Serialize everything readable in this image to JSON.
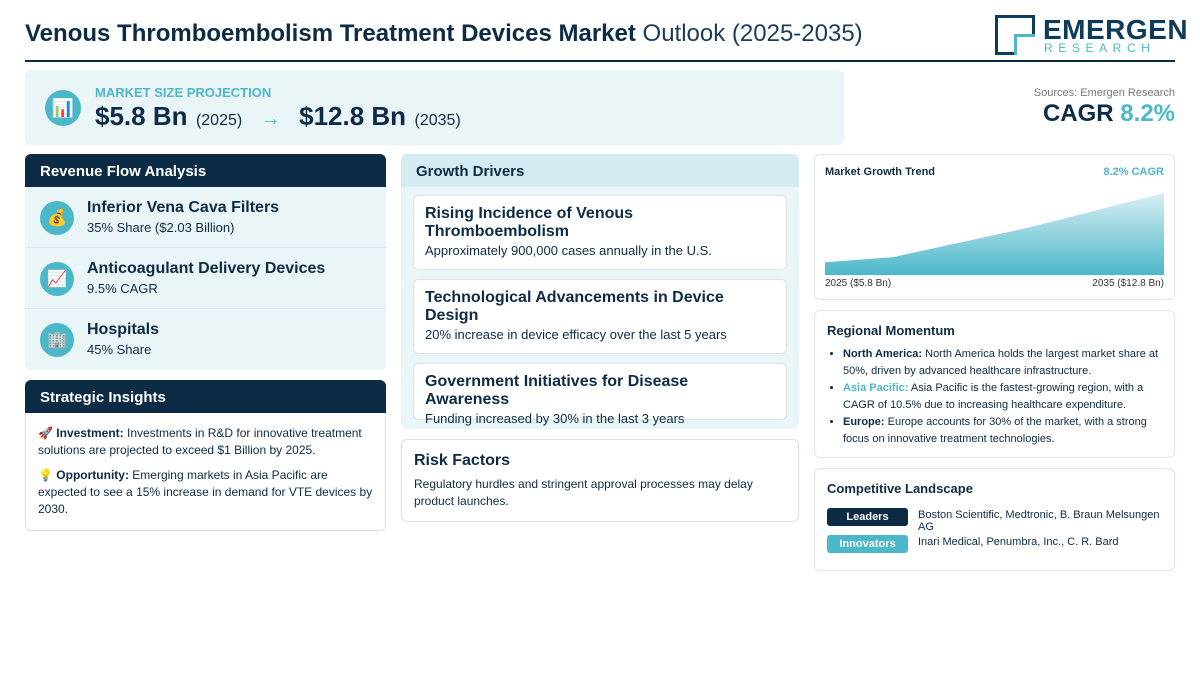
{
  "header": {
    "title_strong": "Venous Thromboembolism Treatment Devices Market",
    "title_light": "Outlook (2025-2035)",
    "logo_name": "EMERGEN",
    "logo_sub": "RESEARCH"
  },
  "projection": {
    "label": "MARKET SIZE PROJECTION",
    "icon": "bar-chart-icon",
    "start_value": "$5.8 Bn",
    "start_year": "(2025)",
    "arrow": "→",
    "end_value": "$12.8 Bn",
    "end_year": "(2035)"
  },
  "cagr": {
    "sources": "Sources: Emergen Research",
    "label": "CAGR",
    "value": "8.2%"
  },
  "revenue_flow": {
    "title": "Revenue Flow Analysis",
    "items": [
      {
        "icon": "money-bag-icon",
        "title": "Inferior Vena Cava Filters",
        "sub": "35% Share ($2.03 Billion)"
      },
      {
        "icon": "trend-up-icon",
        "title": "Anticoagulant Delivery Devices",
        "sub": "9.5% CAGR"
      },
      {
        "icon": "hospital-icon",
        "title": "Hospitals",
        "sub": "45% Share"
      }
    ]
  },
  "strategic": {
    "title": "Strategic Insights",
    "items": [
      {
        "icon": "rocket-icon",
        "label": "Investment:",
        "text": "Investments in R&D for innovative treatment solutions are projected to exceed $1 Billion by 2025."
      },
      {
        "icon": "lightbulb-icon",
        "label": "Opportunity:",
        "text": "Emerging markets in Asia Pacific are expected to see a 15% increase in demand for VTE devices by 2030."
      }
    ]
  },
  "drivers": {
    "title": "Growth Drivers",
    "items": [
      {
        "title": "Rising Incidence of Venous Thromboembolism",
        "sub": "Approximately 900,000 cases annually in the U.S."
      },
      {
        "title": "Technological Advancements in Device Design",
        "sub": "20% increase in device efficacy over the last 5 years"
      },
      {
        "title": "Government Initiatives for Disease Awareness",
        "sub": "Funding increased by 30% in the last 3 years"
      }
    ]
  },
  "risk": {
    "title": "Risk Factors",
    "text": "Regulatory hurdles and stringent approval processes may delay product launches."
  },
  "trend": {
    "title": "Market Growth Trend",
    "cagr": "8.2% CAGR",
    "start_label": "2025 ($5.8 Bn)",
    "end_label": "2035 ($12.8 Bn)",
    "fill_color_top": "#d9eff4",
    "fill_color_bottom": "#4bb8c9"
  },
  "chart_data": {
    "type": "area",
    "x": [
      2025,
      2027,
      2031,
      2035
    ],
    "values": [
      5.8,
      6.3,
      9.3,
      12.8
    ],
    "title": "Market Growth Trend",
    "xlabel": "",
    "ylabel": "",
    "ylim": [
      4.5,
      13.0
    ],
    "grid": false
  },
  "regional": {
    "title": "Regional Momentum",
    "items": [
      {
        "name": "North America:",
        "accent": false,
        "text": "North America holds the largest market share at 50%, driven by advanced healthcare infrastructure."
      },
      {
        "name": "Asia Pacific:",
        "accent": true,
        "text": "Asia Pacific is the fastest-growing region, with a CAGR of 10.5% due to increasing healthcare expenditure."
      },
      {
        "name": "Europe:",
        "accent": false,
        "text": "Europe accounts for 30% of the market, with a strong focus on innovative treatment technologies."
      }
    ]
  },
  "competitive": {
    "title": "Competitive Landscape",
    "rows": [
      {
        "badge": "Leaders",
        "text": "Boston Scientific, Medtronic, B. Braun Melsungen AG"
      },
      {
        "badge": "Innovators",
        "text": "Inari Medical, Penumbra, Inc., C. R. Bard"
      }
    ]
  }
}
